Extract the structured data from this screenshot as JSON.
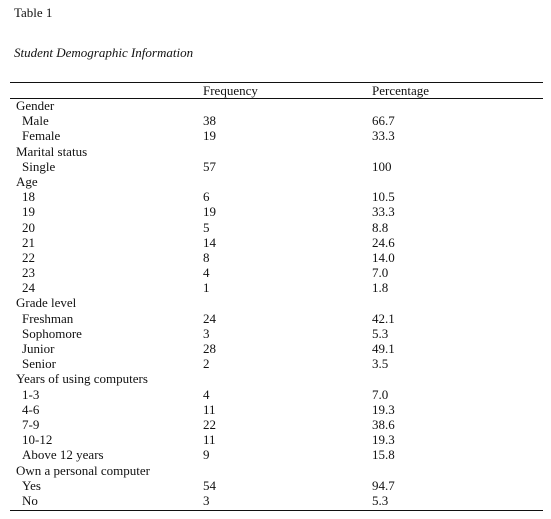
{
  "table_label": "Table 1",
  "table_title": "Student Demographic  Information",
  "columns": {
    "frequency": "Frequency",
    "percentage": "Percentage"
  },
  "rows": [
    {
      "type": "group",
      "label": "Gender"
    },
    {
      "type": "item",
      "label": "Male",
      "frequency": "38",
      "percentage": "66.7"
    },
    {
      "type": "item",
      "label": "Female",
      "frequency": "19",
      "percentage": "33.3"
    },
    {
      "type": "group",
      "label": "Marital status"
    },
    {
      "type": "item",
      "label": "Single",
      "frequency": "57",
      "percentage": "100"
    },
    {
      "type": "group",
      "label": "Age"
    },
    {
      "type": "item",
      "label": "18",
      "frequency": "6",
      "percentage": "10.5"
    },
    {
      "type": "item",
      "label": "19",
      "frequency": "19",
      "percentage": "33.3"
    },
    {
      "type": "item",
      "label": "20",
      "frequency": "5",
      "percentage": "8.8"
    },
    {
      "type": "item",
      "label": "21",
      "frequency": "14",
      "percentage": "24.6"
    },
    {
      "type": "item",
      "label": "22",
      "frequency": "8",
      "percentage": "14.0"
    },
    {
      "type": "item",
      "label": "23",
      "frequency": "4",
      "percentage": "7.0"
    },
    {
      "type": "item",
      "label": "24",
      "frequency": "1",
      "percentage": "1.8"
    },
    {
      "type": "group",
      "label": "Grade level"
    },
    {
      "type": "item",
      "label": "Freshman",
      "frequency": "24",
      "percentage": "42.1"
    },
    {
      "type": "item",
      "label": "Sophomore",
      "frequency": "3",
      "percentage": "5.3"
    },
    {
      "type": "item",
      "label": "Junior",
      "frequency": "28",
      "percentage": "49.1"
    },
    {
      "type": "item",
      "label": "Senior",
      "frequency": "2",
      "percentage": "3.5"
    },
    {
      "type": "group",
      "label": "Years of using computers"
    },
    {
      "type": "item",
      "label": "1-3",
      "frequency": "4",
      "percentage": "7.0"
    },
    {
      "type": "item",
      "label": "4-6",
      "frequency": "11",
      "percentage": "19.3"
    },
    {
      "type": "item",
      "label": "7-9",
      "frequency": "22",
      "percentage": "38.6"
    },
    {
      "type": "item",
      "label": "10-12",
      "frequency": "11",
      "percentage": "19.3"
    },
    {
      "type": "item",
      "label": "Above 12 years",
      "frequency": "9",
      "percentage": "15.8"
    },
    {
      "type": "group",
      "label": "Own a personal computer"
    },
    {
      "type": "item",
      "label": "Yes",
      "frequency": "54",
      "percentage": "94.7"
    },
    {
      "type": "item",
      "label": "No",
      "frequency": "3",
      "percentage": "5.3"
    }
  ]
}
